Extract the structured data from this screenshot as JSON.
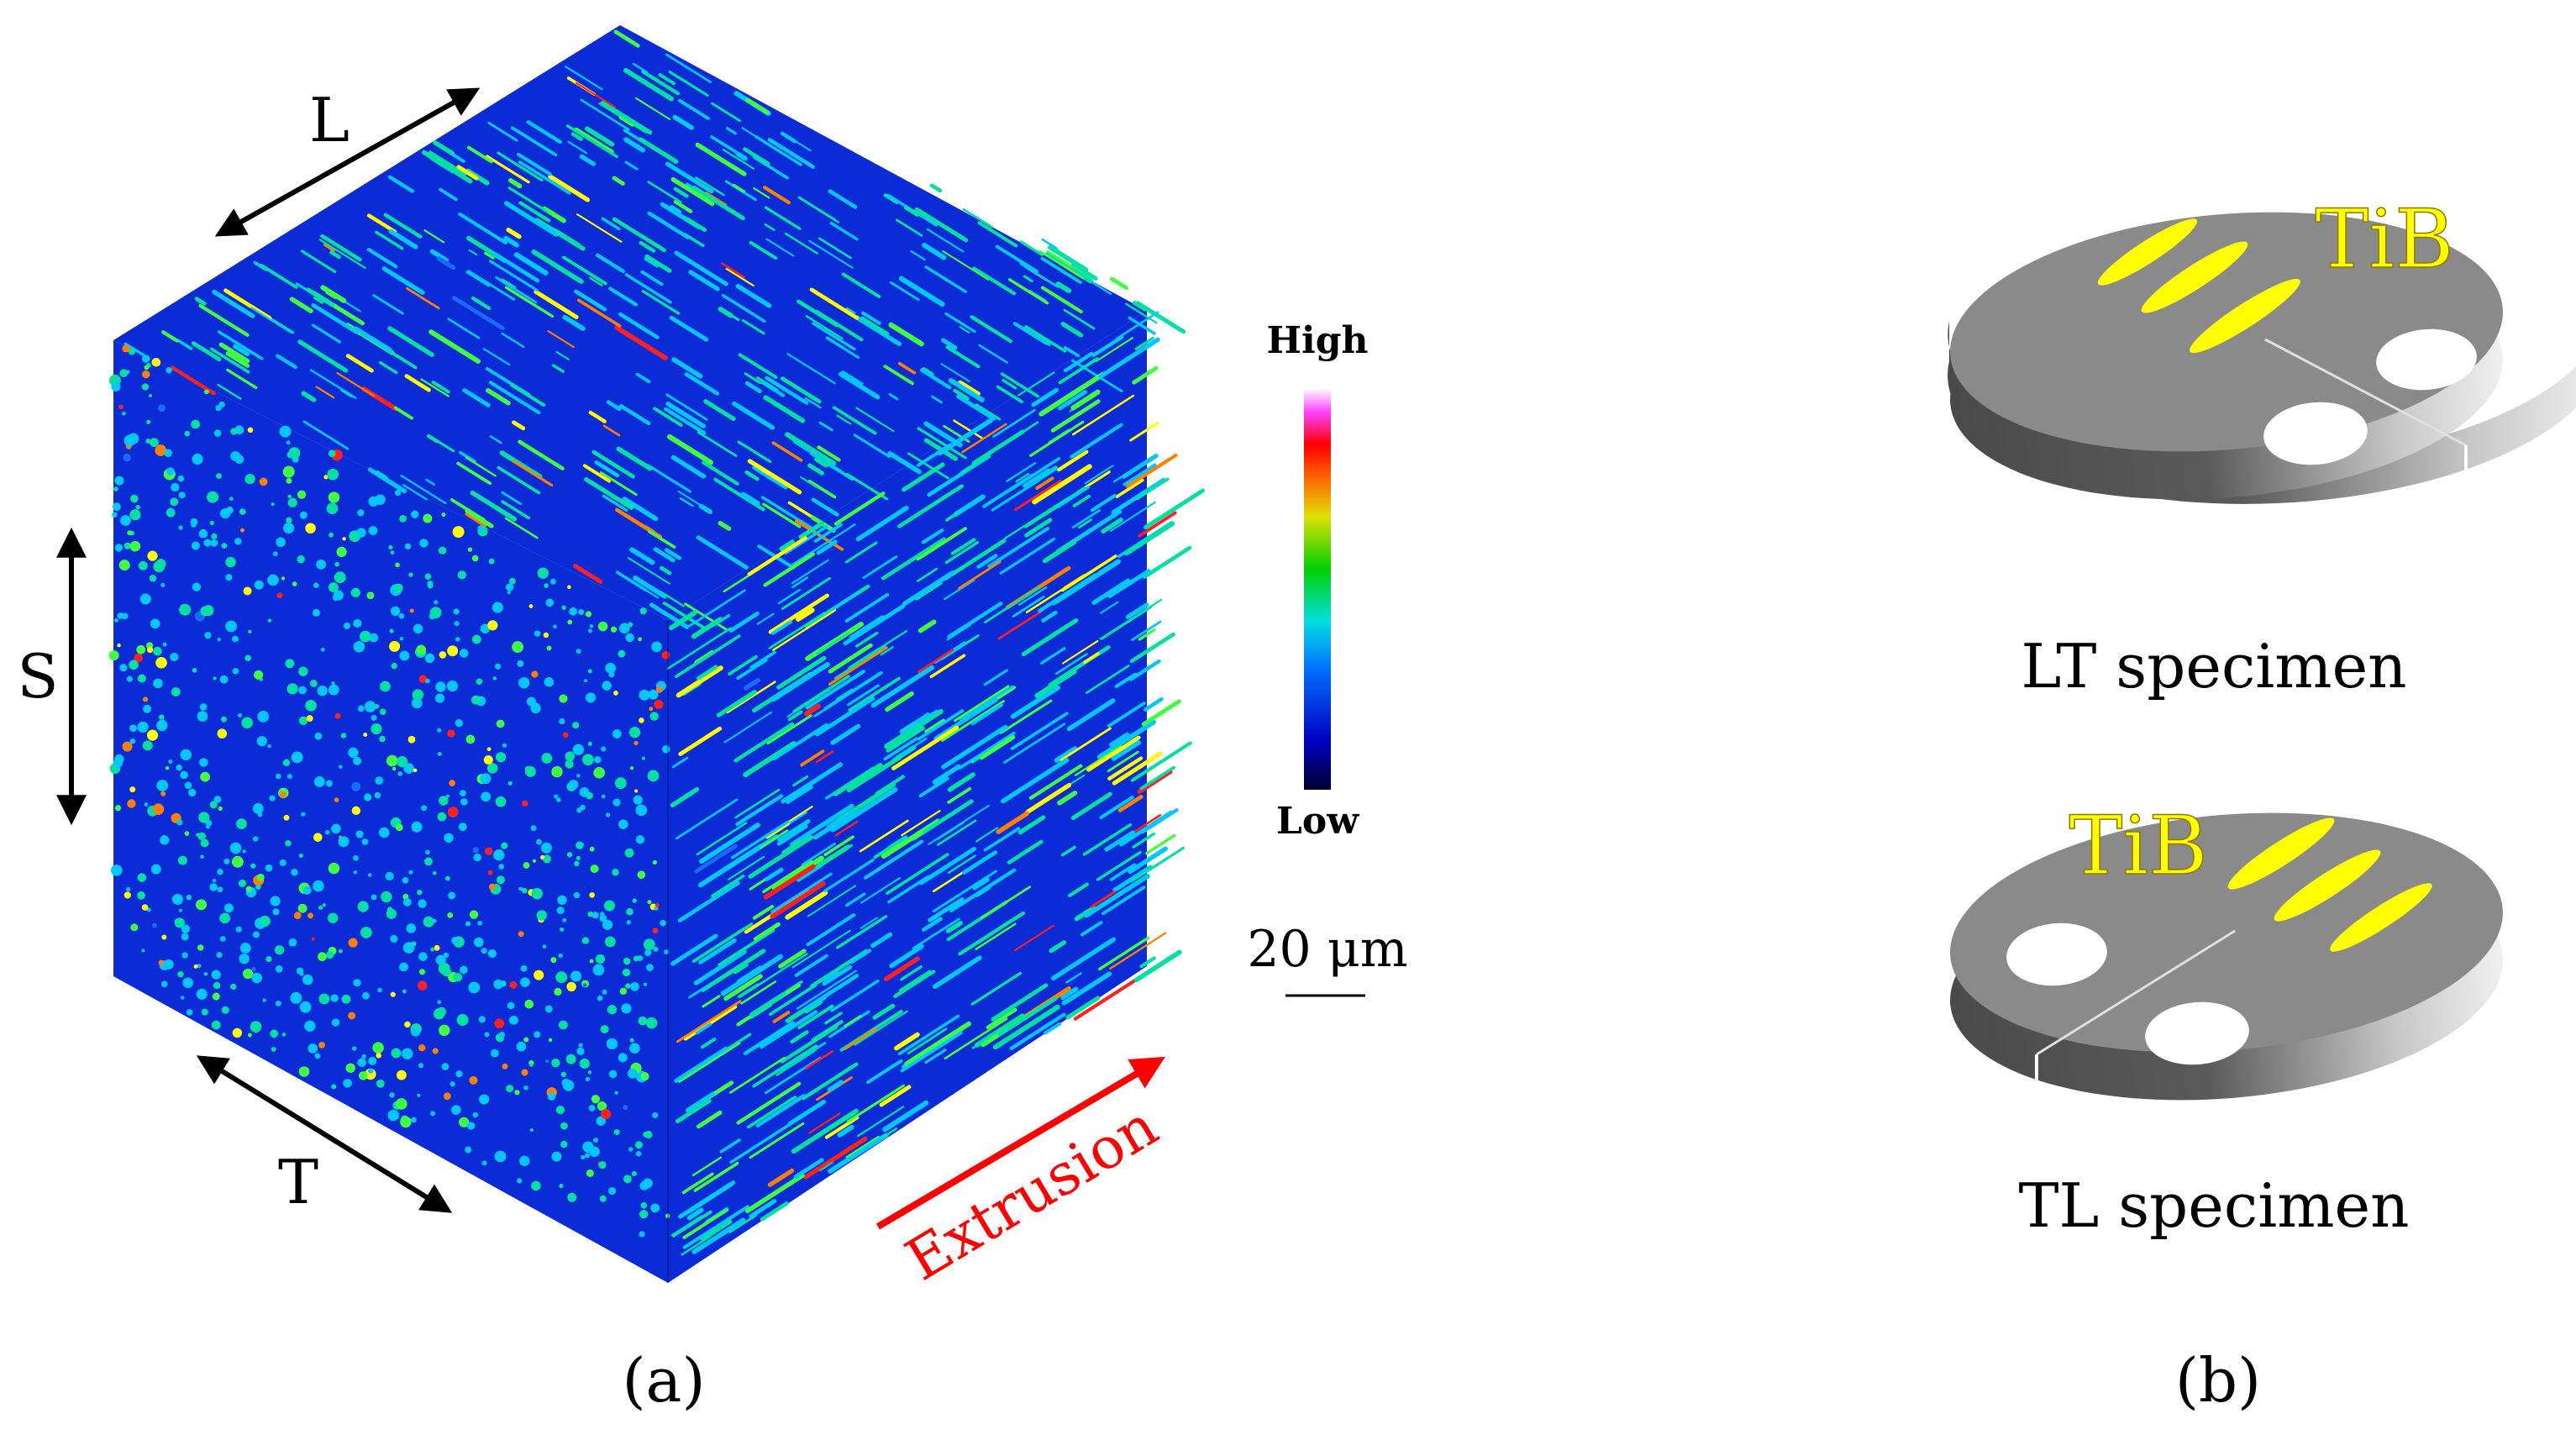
{
  "panel_a": {
    "caption": "(a)",
    "axis_labels": {
      "longitudinal": "L",
      "short": "S",
      "transverse": "T"
    },
    "direction_label": "Extrusion",
    "colorbar": {
      "high": "High",
      "low": "Low"
    },
    "scale_bar": "20 μm",
    "colors": {
      "background": "#0a2bd6",
      "arrow": "#ff0000"
    }
  },
  "panel_b": {
    "caption": "(b)",
    "specimens": [
      {
        "reinforcement_label": "TiB",
        "name": "LT specimen"
      },
      {
        "reinforcement_label": "TiB",
        "name": "TL specimen"
      }
    ],
    "colors": {
      "disc": "#8a8a8a",
      "whisker": "#ffff00"
    }
  }
}
